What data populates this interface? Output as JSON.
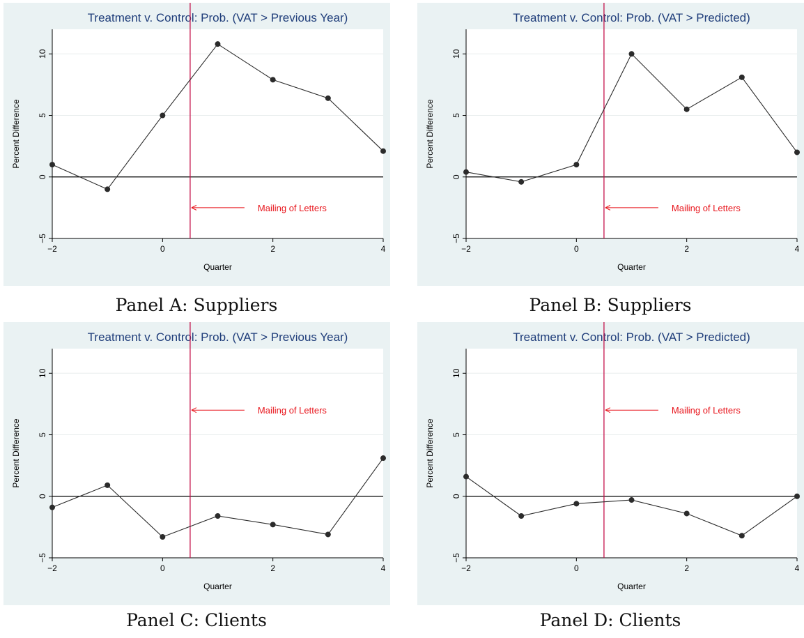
{
  "chart_data": [
    {
      "type": "line",
      "panel": "A",
      "title": "Treatment v. Control: Prob. (VAT > Previous Year)",
      "xlabel": "Quarter",
      "ylabel": "Percent Difference",
      "caption": "Panel A: Suppliers",
      "x": [
        -2,
        -1,
        0,
        1,
        2,
        3,
        4
      ],
      "values": [
        1.0,
        -1.0,
        5.0,
        10.8,
        7.9,
        6.4,
        2.1
      ],
      "xlim": [
        -2,
        4
      ],
      "ylim": [
        -5,
        12
      ],
      "xticks": [
        "−2",
        "0",
        "2",
        "4"
      ],
      "yticks": [
        "−5",
        "0",
        "5",
        "10"
      ],
      "event_x": 0.5,
      "annotation": {
        "text": "Mailing of Letters",
        "y": -2.5
      },
      "color_line": "#2b2b2b",
      "color_event": "#c4124a",
      "color_annotation": "#e8141b"
    },
    {
      "type": "line",
      "panel": "B",
      "title": "Treatment v. Control: Prob. (VAT > Predicted)",
      "xlabel": "Quarter",
      "ylabel": "Percent Difference",
      "caption": "Panel B: Suppliers",
      "x": [
        -2,
        -1,
        0,
        1,
        2,
        3,
        4
      ],
      "values": [
        0.4,
        -0.4,
        1.0,
        10.0,
        5.5,
        8.1,
        2.0
      ],
      "xlim": [
        -2,
        4
      ],
      "ylim": [
        -5,
        12
      ],
      "xticks": [
        "−2",
        "0",
        "2",
        "4"
      ],
      "yticks": [
        "−5",
        "0",
        "5",
        "10"
      ],
      "event_x": 0.5,
      "annotation": {
        "text": "Mailing of Letters",
        "y": -2.5
      },
      "color_line": "#2b2b2b",
      "color_event": "#c4124a",
      "color_annotation": "#e8141b"
    },
    {
      "type": "line",
      "panel": "C",
      "title": "Treatment v. Control: Prob. (VAT > Previous Year)",
      "xlabel": "Quarter",
      "ylabel": "Percent Difference",
      "caption": "Panel C: Clients",
      "x": [
        -2,
        -1,
        0,
        1,
        2,
        3,
        4
      ],
      "values": [
        -0.9,
        0.9,
        -3.3,
        -1.6,
        -2.3,
        -3.1,
        3.1
      ],
      "xlim": [
        -2,
        4
      ],
      "ylim": [
        -5,
        12
      ],
      "xticks": [
        "−2",
        "0",
        "2",
        "4"
      ],
      "yticks": [
        "−5",
        "0",
        "5",
        "10"
      ],
      "event_x": 0.5,
      "annotation": {
        "text": "Mailing of Letters",
        "y": 7.0
      },
      "color_line": "#2b2b2b",
      "color_event": "#c4124a",
      "color_annotation": "#e8141b"
    },
    {
      "type": "line",
      "panel": "D",
      "title": "Treatment v. Control: Prob. (VAT > Predicted)",
      "xlabel": "Quarter",
      "ylabel": "Percent Difference",
      "caption": "Panel D: Clients",
      "x": [
        -2,
        -1,
        0,
        1,
        2,
        3,
        4
      ],
      "values": [
        1.6,
        -1.6,
        -0.6,
        -0.3,
        -1.4,
        -3.2,
        0.0
      ],
      "xlim": [
        -2,
        4
      ],
      "ylim": [
        -5,
        12
      ],
      "xticks": [
        "−2",
        "0",
        "2",
        "4"
      ],
      "yticks": [
        "−5",
        "0",
        "5",
        "10"
      ],
      "event_x": 0.5,
      "annotation": {
        "text": "Mailing of Letters",
        "y": 7.0
      },
      "color_line": "#2b2b2b",
      "color_event": "#c4124a",
      "color_annotation": "#e8141b"
    }
  ]
}
